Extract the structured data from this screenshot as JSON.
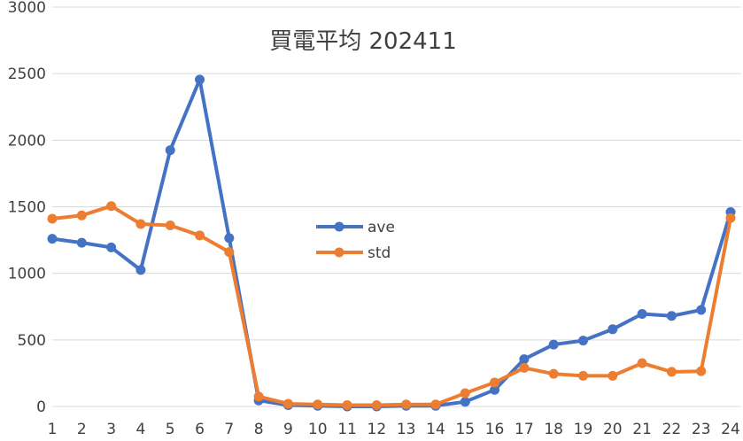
{
  "chart_data": {
    "type": "line",
    "title": "買電平均 202411",
    "xlabel": "",
    "ylabel": "",
    "categories": [
      "1",
      "2",
      "3",
      "4",
      "5",
      "6",
      "7",
      "8",
      "9",
      "10",
      "11",
      "12",
      "13",
      "14",
      "15",
      "16",
      "17",
      "18",
      "19",
      "20",
      "21",
      "22",
      "23",
      "24"
    ],
    "ylim": [
      0,
      3000
    ],
    "yticks": [
      0,
      500,
      1000,
      1500,
      2000,
      2500,
      3000
    ],
    "grid": true,
    "legend_position": "center",
    "series": [
      {
        "name": "ave",
        "color": "#4472c4",
        "values": [
          1260,
          1230,
          1195,
          1025,
          1925,
          2455,
          1265,
          45,
          10,
          5,
          0,
          0,
          5,
          5,
          35,
          125,
          355,
          465,
          495,
          580,
          695,
          680,
          725,
          1460
        ]
      },
      {
        "name": "std",
        "color": "#ed7d31",
        "values": [
          1410,
          1435,
          1505,
          1370,
          1360,
          1285,
          1160,
          75,
          20,
          15,
          10,
          10,
          15,
          15,
          100,
          180,
          290,
          245,
          230,
          230,
          325,
          260,
          265,
          1415
        ]
      }
    ]
  }
}
